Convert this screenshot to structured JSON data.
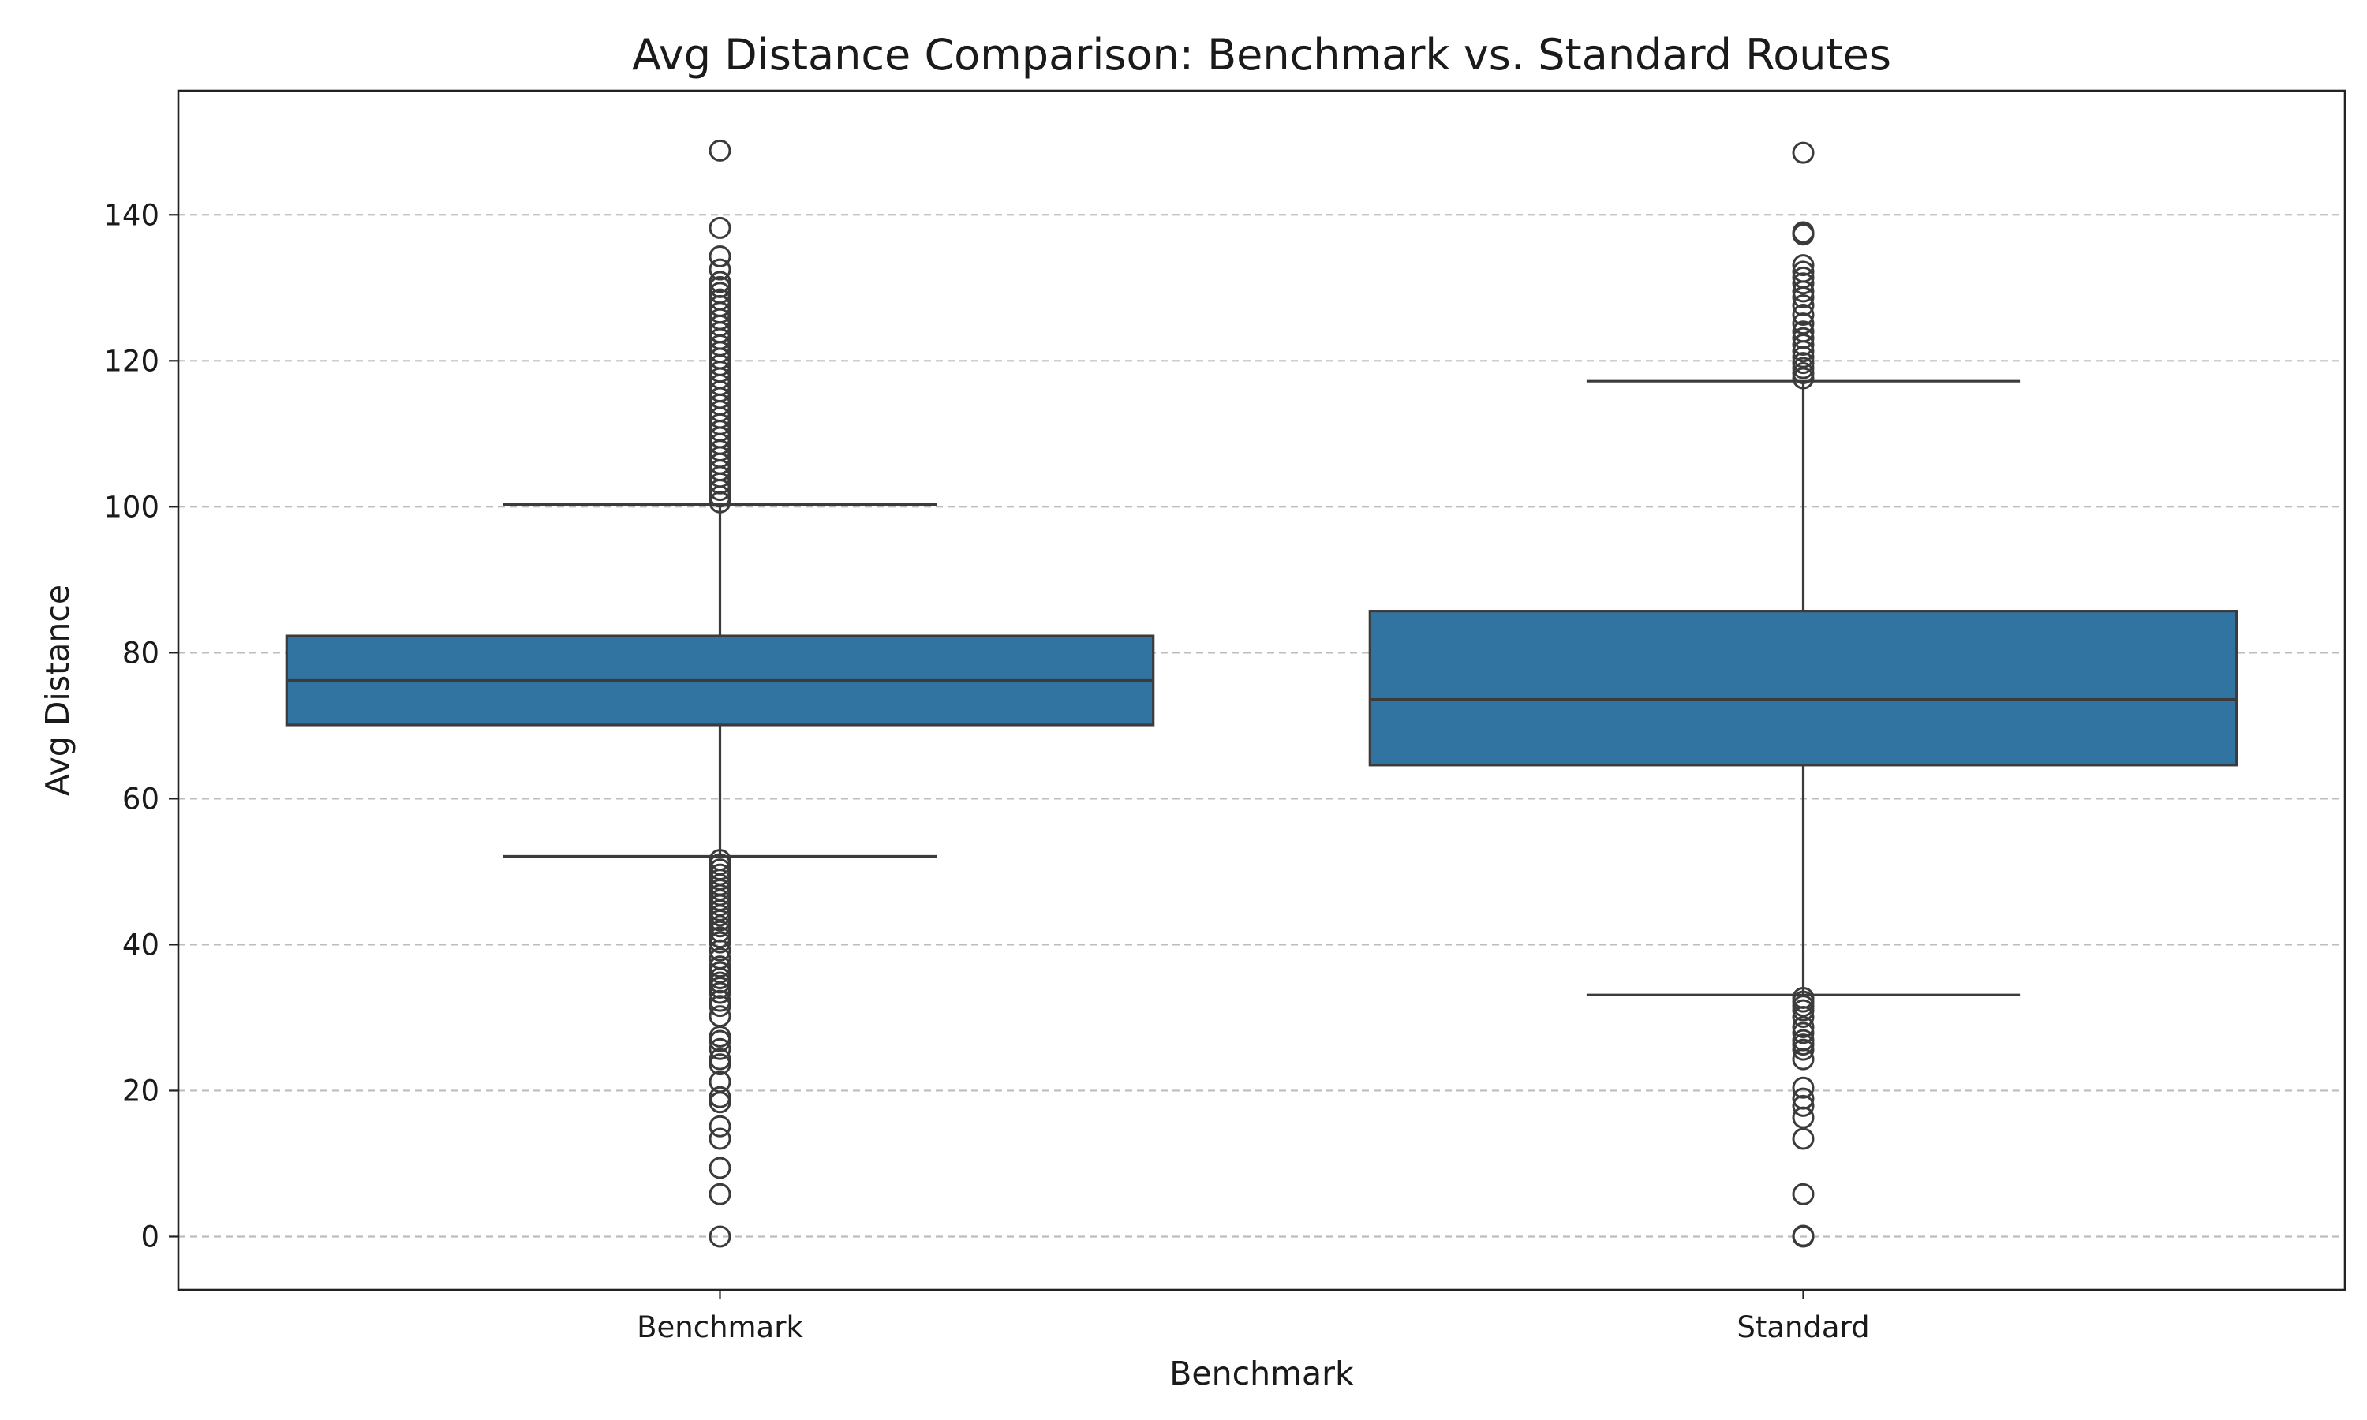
{
  "chart_data": {
    "type": "box",
    "title": "Avg Distance Comparison: Benchmark vs. Standard Routes",
    "xlabel": "Benchmark",
    "ylabel": "Avg Distance",
    "ylim": [
      -7.3,
      157
    ],
    "yticks": [
      0,
      20,
      40,
      60,
      80,
      100,
      120,
      140
    ],
    "grid": "y",
    "box_color": "#3274a1",
    "categories": [
      "Benchmark",
      "Standard"
    ],
    "boxes": [
      {
        "category": "Benchmark",
        "whisker_low": 52.1,
        "q1": 70.1,
        "median": 76.2,
        "q3": 82.3,
        "whisker_high": 100.3,
        "outliers": [
          0,
          5.8,
          9.4,
          13.4,
          15.1,
          18.4,
          19.1,
          21.2,
          23.6,
          24.3,
          25.7,
          26.8,
          27.4,
          30.2,
          31.6,
          32.3,
          33.4,
          34.1,
          34.8,
          35.4,
          36.2,
          37.0,
          38.1,
          39.2,
          40.3,
          41.0,
          41.8,
          42.5,
          43.3,
          44.0,
          44.7,
          45.4,
          46.1,
          46.8,
          47.5,
          48.2,
          48.9,
          49.6,
          50.3,
          51.0,
          51.6,
          100.6,
          101.4,
          102.3,
          103.2,
          104.1,
          105.0,
          105.9,
          106.8,
          107.7,
          108.6,
          109.5,
          110.4,
          111.3,
          112.2,
          113.1,
          114.0,
          114.9,
          115.8,
          116.7,
          117.6,
          118.5,
          119.4,
          120.3,
          121.2,
          122.1,
          123.0,
          123.9,
          124.8,
          125.7,
          126.6,
          127.5,
          128.4,
          129.3,
          130.1,
          130.8,
          132.5,
          134.3,
          138.2,
          148.8
        ]
      },
      {
        "category": "Standard",
        "whisker_low": 33.1,
        "q1": 64.6,
        "median": 73.6,
        "q3": 85.7,
        "whisker_high": 117.2,
        "outliers": [
          0,
          0.1,
          5.8,
          13.4,
          16.3,
          17.9,
          18.9,
          20.4,
          24.3,
          25.6,
          26.3,
          26.9,
          27.9,
          28.7,
          30.1,
          31.0,
          31.6,
          32.2,
          32.7,
          117.6,
          118.3,
          119.0,
          119.7,
          120.5,
          121.3,
          122.2,
          123.1,
          124.0,
          125.1,
          126.3,
          127.6,
          128.7,
          129.5,
          130.6,
          131.4,
          132.2,
          133.1,
          137.3,
          137.6,
          148.5
        ]
      }
    ]
  }
}
